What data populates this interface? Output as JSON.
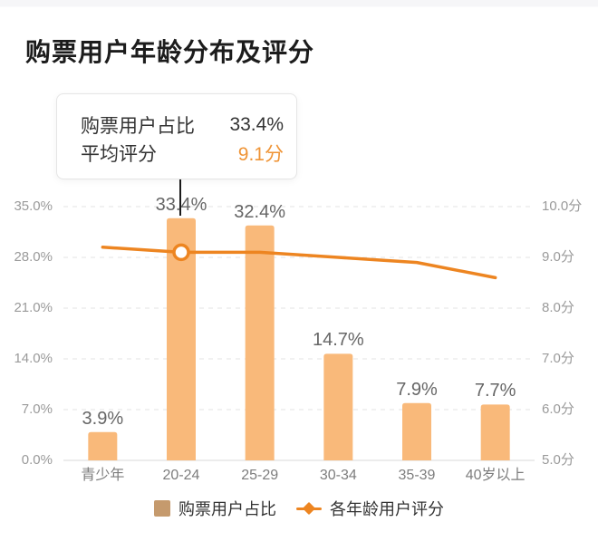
{
  "page": {
    "title": "购票用户年龄分布及评分"
  },
  "tooltip": {
    "rows": [
      {
        "label": "购票用户占比",
        "value": "33.4%",
        "value_color": "#333333"
      },
      {
        "label": "平均评分",
        "value": "9.1分",
        "value_color": "#ef9436"
      }
    ],
    "anchor_category": "20-24"
  },
  "chart_data": {
    "type": "bar",
    "categories": [
      "青少年",
      "20-24",
      "25-29",
      "30-34",
      "35-39",
      "40岁以上"
    ],
    "series": [
      {
        "name": "购票用户占比",
        "type": "bar",
        "values": [
          3.9,
          33.4,
          32.4,
          14.7,
          7.9,
          7.7
        ],
        "labels": [
          "3.9%",
          "33.4%",
          "32.4%",
          "14.7%",
          "7.9%",
          "7.7%"
        ],
        "unit": "%",
        "color": "#f9b97a"
      },
      {
        "name": "各年龄用户评分",
        "type": "line",
        "values": [
          9.2,
          9.1,
          9.1,
          9.0,
          8.9,
          8.6
        ],
        "unit": "分",
        "color": "#ed8521",
        "marker_index": 1
      }
    ],
    "left_axis": {
      "ticks": [
        "0.0%",
        "7.0%",
        "14.0%",
        "21.0%",
        "28.0%",
        "35.0%"
      ],
      "min": 0,
      "max": 35
    },
    "right_axis": {
      "ticks": [
        "5.0分",
        "6.0分",
        "7.0分",
        "8.0分",
        "9.0分",
        "10.0分"
      ],
      "min": 5,
      "max": 10
    },
    "grid": {
      "style": "dashed",
      "color": "#e3e3e3",
      "baseline_color": "#d8d8d8"
    },
    "legend": {
      "position": "bottom",
      "items": [
        {
          "label": "购票用户占比",
          "marker": "square",
          "color": "#c59a6d"
        },
        {
          "label": "各年龄用户评分",
          "marker": "line-diamond",
          "color": "#ed8521"
        }
      ]
    }
  }
}
